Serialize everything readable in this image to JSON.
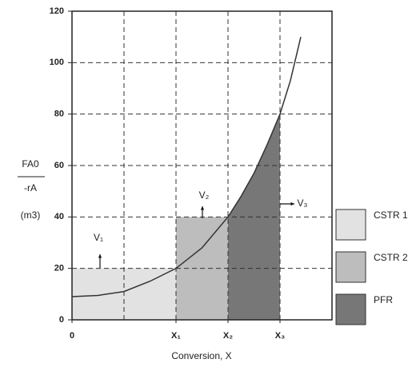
{
  "chart_data": {
    "type": "levenspiel",
    "xlabel": "Conversion, X",
    "ylabel": {
      "numerator": "FA0",
      "denominator": "-rA",
      "unit": "(m3)"
    },
    "xlim": [
      0,
      5
    ],
    "xticks": [
      0,
      {
        "value": 2,
        "label": "X₁"
      },
      {
        "value": 3,
        "label": "X₂"
      },
      {
        "value": 4,
        "label": "X₃"
      }
    ],
    "xgrid": [
      1,
      2,
      3,
      4
    ],
    "ylim": [
      0,
      120
    ],
    "yticks": [
      0,
      20,
      40,
      60,
      80,
      100,
      120
    ],
    "grid": true,
    "curve": {
      "color": "#333333",
      "x": [
        0,
        0.5,
        1,
        1.5,
        2,
        2.5,
        3,
        3.25,
        3.5,
        3.75,
        4,
        4.2,
        4.4
      ],
      "values": [
        9,
        9.5,
        11,
        15,
        20,
        28,
        40,
        48,
        57,
        68,
        80,
        93,
        110
      ]
    },
    "series": [
      {
        "name": "CSTR 1",
        "color": "#e2e2e2",
        "x": [
          0,
          2
        ],
        "values": [
          20,
          20
        ]
      },
      {
        "name": "CSTR 2",
        "color": "#bdbdbd",
        "x": [
          2,
          3
        ],
        "values": [
          40,
          40
        ]
      },
      {
        "name": "PFR",
        "color": "#777777",
        "x": [
          3,
          3.25,
          3.5,
          3.75,
          4
        ],
        "values": [
          40,
          48,
          57,
          68,
          80
        ]
      }
    ],
    "annotations": [
      "V₁",
      "V₂",
      "V₃"
    ]
  }
}
